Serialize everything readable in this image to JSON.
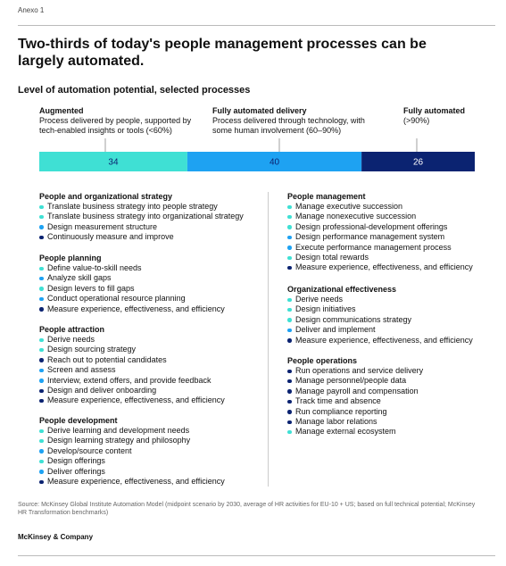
{
  "header": {
    "label": "Anexo 1",
    "title": "Two-thirds of today's people management processes can be largely automated."
  },
  "chart_data": {
    "type": "stacked-bar",
    "title": "Level of automation potential, selected processes",
    "series": [
      {
        "name": "Augmented",
        "description": "Process delivered by people, supported by tech-enabled insights or tools (<60%)",
        "color": "#3fe0d4",
        "values": [
          34
        ]
      },
      {
        "name": "Fully automated delivery",
        "description": "Process delivered through technology, with some human involvement (60–90%)",
        "color": "#1ea2f2",
        "values": [
          40
        ]
      },
      {
        "name": "Fully automated",
        "description": "(>90%)",
        "color": "#0b2371",
        "values": [
          26
        ]
      }
    ]
  },
  "groups": [
    {
      "title": "People and organizational strategy",
      "items": [
        {
          "text": "Translate business strategy into people strategy",
          "color": "#3fe0d4"
        },
        {
          "text": "Translate business strategy into organizational strategy",
          "color": "#3fe0d4"
        },
        {
          "text": "Design measurement structure",
          "color": "#1ea2f2"
        },
        {
          "text": "Continuously measure and improve",
          "color": "#0b2371"
        }
      ]
    },
    {
      "title": "People planning",
      "items": [
        {
          "text": "Define value-to-skill needs",
          "color": "#3fe0d4"
        },
        {
          "text": "Analyze skill gaps",
          "color": "#1ea2f2"
        },
        {
          "text": "Design levers to fill gaps",
          "color": "#3fe0d4"
        },
        {
          "text": "Conduct operational resource planning",
          "color": "#1ea2f2"
        },
        {
          "text": "Measure experience, effectiveness, and efficiency",
          "color": "#0b2371"
        }
      ]
    },
    {
      "title": "People attraction",
      "items": [
        {
          "text": "Derive needs",
          "color": "#3fe0d4"
        },
        {
          "text": "Design sourcing strategy",
          "color": "#3fe0d4"
        },
        {
          "text": "Reach out to potential candidates",
          "color": "#0b2371"
        },
        {
          "text": "Screen and assess",
          "color": "#1ea2f2"
        },
        {
          "text": "Interview, extend offers, and provide feedback",
          "color": "#1ea2f2"
        },
        {
          "text": "Design and deliver onboarding",
          "color": "#0b2371"
        },
        {
          "text": "Measure experience, effectiveness, and efficiency",
          "color": "#0b2371"
        }
      ]
    },
    {
      "title": "People development",
      "items": [
        {
          "text": "Derive learning and development needs",
          "color": "#3fe0d4"
        },
        {
          "text": "Design learning strategy and philosophy",
          "color": "#3fe0d4"
        },
        {
          "text": "Develop/source content",
          "color": "#1ea2f2"
        },
        {
          "text": "Design offerings",
          "color": "#3fe0d4"
        },
        {
          "text": "Deliver offerings",
          "color": "#1ea2f2"
        },
        {
          "text": "Measure experience, effectiveness, and efficiency",
          "color": "#0b2371"
        }
      ]
    },
    {
      "title": "People management",
      "items": [
        {
          "text": "Manage executive succession",
          "color": "#3fe0d4"
        },
        {
          "text": "Manage nonexecutive succession",
          "color": "#3fe0d4"
        },
        {
          "text": "Design professional-development offerings",
          "color": "#3fe0d4"
        },
        {
          "text": "Design performance management system",
          "color": "#1ea2f2"
        },
        {
          "text": "Execute performance management process",
          "color": "#1ea2f2"
        },
        {
          "text": "Design total rewards",
          "color": "#3fe0d4"
        },
        {
          "text": "Measure experience, effectiveness, and efficiency",
          "color": "#0b2371"
        }
      ]
    },
    {
      "title": "Organizational effectiveness",
      "items": [
        {
          "text": "Derive needs",
          "color": "#3fe0d4"
        },
        {
          "text": "Design initiatives",
          "color": "#3fe0d4"
        },
        {
          "text": "Design communications strategy",
          "color": "#3fe0d4"
        },
        {
          "text": "Deliver and implement",
          "color": "#1ea2f2"
        },
        {
          "text": "Measure experience, effectiveness, and efficiency",
          "color": "#0b2371"
        }
      ]
    },
    {
      "title": "People operations",
      "items": [
        {
          "text": "Run operations and service delivery",
          "color": "#0b2371"
        },
        {
          "text": "Manage personnel/people data",
          "color": "#0b2371"
        },
        {
          "text": "Manage payroll and compensation",
          "color": "#0b2371"
        },
        {
          "text": "Track time and absence",
          "color": "#0b2371"
        },
        {
          "text": "Run compliance reporting",
          "color": "#0b2371"
        },
        {
          "text": "Manage labor relations",
          "color": "#0b2371"
        },
        {
          "text": "Manage external ecosystem",
          "color": "#3fe0d4"
        }
      ]
    }
  ],
  "footer": {
    "source": "Source: McKinsey Global Institute Automation Model (midpoint scenario by 2030, average of HR activities for EU-10 + US; based on full technical potential; McKinsey HR Transformation benchmarks)",
    "brand": "McKinsey & Company"
  }
}
